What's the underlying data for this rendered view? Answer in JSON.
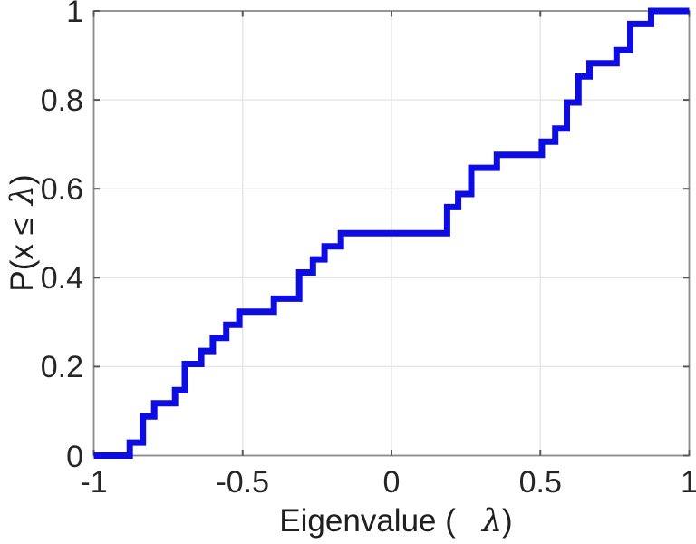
{
  "labels": {
    "x_prefix": "Eigenvalue ( ",
    "x_symbol": "λ",
    "x_suffix": ")",
    "y_prefix": "P(x ≤ ",
    "y_symbol": "λ",
    "y_suffix": ")"
  },
  "style": {
    "line_color": "#0d0de3",
    "frame_color": "#8b8b8b",
    "grid_color": "#e7e7e7",
    "tick_color": "#565656",
    "text_color": "#262626",
    "background": "#ffffff"
  },
  "chart_data": {
    "type": "line",
    "subtype": "empirical-cdf-step",
    "title": "",
    "xlabel": "Eigenvalue ( λ)",
    "ylabel": "P(x ≤ λ)",
    "xlim": [
      -1,
      1
    ],
    "ylim": [
      0,
      1
    ],
    "x_ticks": [
      -1,
      -0.5,
      0,
      0.5,
      1
    ],
    "x_tick_labels": [
      "-1",
      "-0.5",
      "0",
      "0.5",
      "1"
    ],
    "y_ticks": [
      0,
      0.2,
      0.4,
      0.6,
      0.8,
      1
    ],
    "y_tick_labels": [
      "0",
      "0.2",
      "0.4",
      "0.6",
      "0.8",
      "1"
    ],
    "grid": true,
    "legend": null,
    "sample_count": 34,
    "line_width": 7,
    "start": [
      -1,
      0
    ],
    "end": [
      1,
      1
    ],
    "steps": [
      [
        -0.879,
        0.0294
      ],
      [
        -0.835,
        0.0882
      ],
      [
        -0.797,
        0.1176
      ],
      [
        -0.727,
        0.1471
      ],
      [
        -0.694,
        0.2059
      ],
      [
        -0.639,
        0.2353
      ],
      [
        -0.6,
        0.2647
      ],
      [
        -0.555,
        0.2941
      ],
      [
        -0.511,
        0.3235
      ],
      [
        -0.395,
        0.3529
      ],
      [
        -0.31,
        0.4118
      ],
      [
        -0.264,
        0.4412
      ],
      [
        -0.225,
        0.4706
      ],
      [
        -0.17,
        0.5
      ],
      [
        0.187,
        0.5588
      ],
      [
        0.224,
        0.5882
      ],
      [
        0.268,
        0.6471
      ],
      [
        0.354,
        0.6765
      ],
      [
        0.505,
        0.7059
      ],
      [
        0.55,
        0.7353
      ],
      [
        0.589,
        0.7941
      ],
      [
        0.628,
        0.8529
      ],
      [
        0.665,
        0.8824
      ],
      [
        0.756,
        0.9118
      ],
      [
        0.802,
        0.9706
      ],
      [
        0.872,
        1.0
      ]
    ]
  }
}
